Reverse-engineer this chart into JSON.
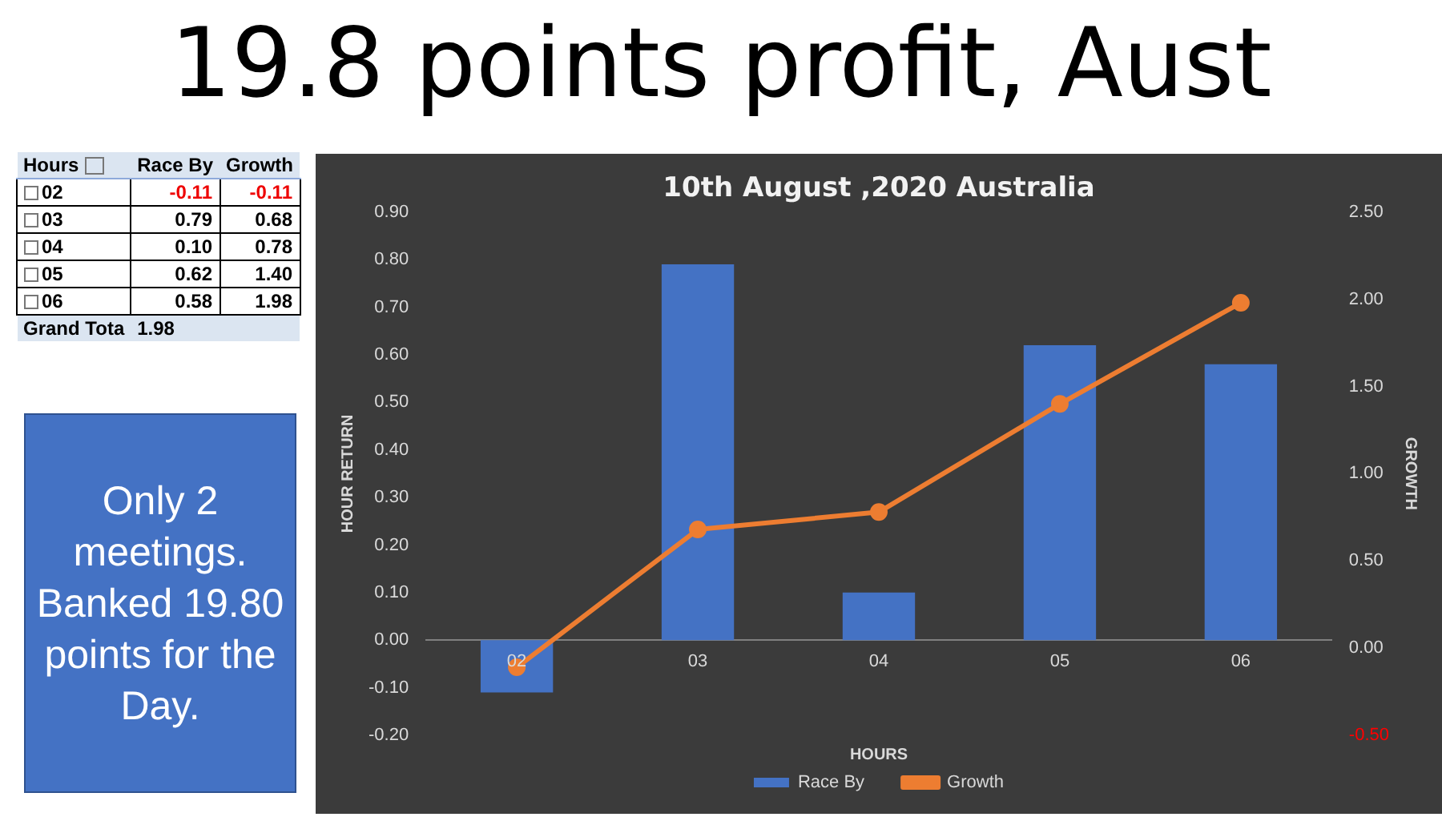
{
  "chart_data": {
    "type": "bar",
    "title": "19.8 points profit, Aust",
    "subtitle": "10th August ,2020 Australia",
    "xlabel": "HOURS",
    "ylabel": "HOUR RETURN",
    "y2label": "GROWTH",
    "categories": [
      "02",
      "03",
      "04",
      "05",
      "06"
    ],
    "series": [
      {
        "name": "Race By",
        "color": "#4472c4",
        "values": [
          -0.11,
          0.79,
          0.1,
          0.62,
          0.58
        ]
      },
      {
        "name": "Growth",
        "type": "line",
        "axis": "y2",
        "color": "#ed7d31",
        "values": [
          -0.11,
          0.68,
          0.78,
          1.4,
          1.98
        ]
      }
    ],
    "ylim": [
      -0.2,
      0.9
    ],
    "yticks": [
      {
        "value": -0.2,
        "label": "-0.20"
      },
      {
        "value": -0.1,
        "label": "-0.10"
      },
      {
        "value": 0,
        "label": "0.00"
      },
      {
        "value": 0.1,
        "label": "0.10"
      },
      {
        "value": 0.2,
        "label": "0.20"
      },
      {
        "value": 0.3,
        "label": "0.30"
      },
      {
        "value": 0.4,
        "label": "0.40"
      },
      {
        "value": 0.5,
        "label": "0.50"
      },
      {
        "value": 0.6,
        "label": "0.60"
      },
      {
        "value": 0.7,
        "label": "0.70"
      },
      {
        "value": 0.8,
        "label": "0.80"
      },
      {
        "value": 0.9,
        "label": "0.90"
      }
    ],
    "y2lim": [
      -0.5,
      2.5
    ],
    "y2ticks": [
      {
        "value": -0.5,
        "label": "-0.50"
      },
      {
        "value": 0,
        "label": "0.00"
      },
      {
        "value": 0.5,
        "label": "0.50"
      },
      {
        "value": 1,
        "label": "1.00"
      },
      {
        "value": 1.5,
        "label": "1.50"
      },
      {
        "value": 2,
        "label": "2.00"
      },
      {
        "value": 2.5,
        "label": "2.50"
      }
    ],
    "marker": "circle",
    "legend": "bottom",
    "annotations": [
      "Hours",
      "Grand Tota",
      "1.98",
      "Only 2 meetings. Banked 19.80 points for the Day.",
      "-0.11",
      "-0.11",
      "0.79",
      "0.68",
      "0.10",
      "0.78",
      "0.62",
      "1.40",
      "0.58",
      "1.98"
    ]
  }
}
